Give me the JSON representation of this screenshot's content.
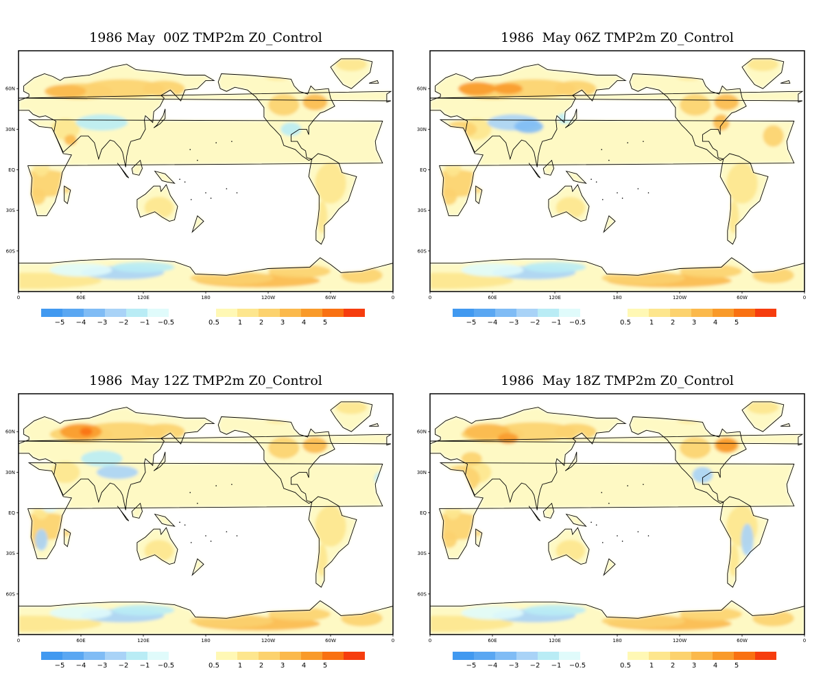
{
  "colorbar": {
    "negative": [
      {
        "label": "−5",
        "color": "#4199f0"
      },
      {
        "label": "−4",
        "color": "#5aa7f2"
      },
      {
        "label": "−3",
        "color": "#80bcf5"
      },
      {
        "label": "−2",
        "color": "#a9d3f7"
      },
      {
        "label": "−1",
        "color": "#b9ecf5"
      },
      {
        "label": "−0.5",
        "color": "#e0fbfb"
      }
    ],
    "positive": [
      {
        "label": "0.5",
        "color": "#fff8b5"
      },
      {
        "label": "1",
        "color": "#fde68e"
      },
      {
        "label": "2",
        "color": "#fcd26e"
      },
      {
        "label": "3",
        "color": "#fbb94c"
      },
      {
        "label": "4",
        "color": "#f99a2a"
      },
      {
        "label": "5",
        "color": "#f97112"
      },
      {
        "label": "",
        "color": "#f63d0e"
      }
    ]
  },
  "axes": {
    "x_ticks": [
      "0",
      "60E",
      "120E",
      "180",
      "120W",
      "60W",
      "0"
    ],
    "y_ticks": [
      "60N",
      "30N",
      "EQ",
      "30S",
      "60S"
    ]
  },
  "panels": [
    {
      "title": "1986 May  00Z TMP2m Z0_Control"
    },
    {
      "title": "1986  May 06Z TMP2m Z0_Control"
    },
    {
      "title": "1986  May 12Z TMP2m Z0_Control"
    },
    {
      "title": "1986  May 18Z TMP2m Z0_Control"
    }
  ]
}
